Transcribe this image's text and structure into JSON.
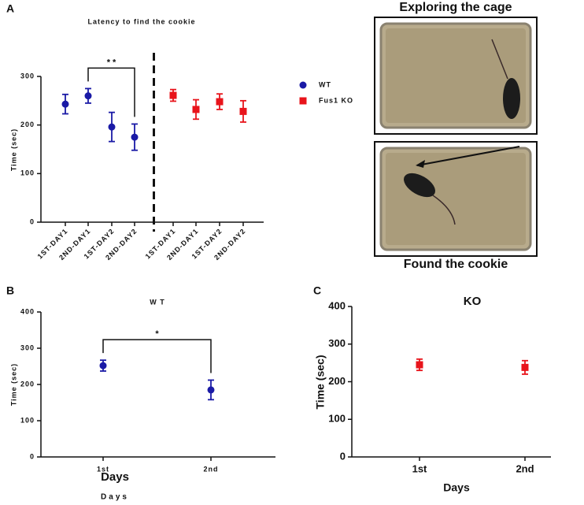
{
  "panel_labels": [
    "A",
    "B",
    "C"
  ],
  "photo_captions": [
    "Exploring the cage",
    "Found the cookie"
  ],
  "chart_data": [
    {
      "type": "scatter",
      "title": "Latency to find the cookie",
      "ylabel": "Time (sec)",
      "categories": [
        "1ST-DAY1",
        "2ND-DAY1",
        "1ST-DAY2",
        "2ND-DAY2",
        "1ST-DAY1",
        "2ND-DAY1",
        "1ST-DAY2",
        "2ND-DAY2"
      ],
      "series": [
        {
          "name": "WT",
          "color": "#1a1aa6",
          "marker": "circle",
          "values": [
            243,
            260,
            196,
            175,
            null,
            null,
            null,
            null
          ],
          "errors": [
            20,
            15,
            30,
            27,
            null,
            null,
            null,
            null
          ]
        },
        {
          "name": "Fus1 KO",
          "color": "#e8141b",
          "marker": "square",
          "values": [
            null,
            null,
            null,
            null,
            261,
            232,
            248,
            228
          ],
          "errors": [
            null,
            null,
            null,
            null,
            12,
            20,
            16,
            22
          ]
        }
      ],
      "ylim": [
        0,
        300
      ],
      "yticks": [
        0,
        100,
        200,
        300
      ],
      "legend": "right",
      "divider": true,
      "annotations": [
        {
          "text": "* *",
          "from": 1,
          "to": 3
        }
      ]
    },
    {
      "type": "scatter",
      "title": "W T",
      "ylabel": "Time (sec)",
      "xlabel": "Days",
      "xlabel_secondary": "Days",
      "categories": [
        "1st",
        "2nd"
      ],
      "series": [
        {
          "name": "WT",
          "color": "#1a1aa6",
          "marker": "circle",
          "values": [
            252,
            185
          ],
          "errors": [
            15,
            27
          ]
        }
      ],
      "ylim": [
        0,
        400
      ],
      "yticks": [
        0,
        100,
        200,
        300,
        400
      ],
      "annotations": [
        {
          "text": "*",
          "from": 0,
          "to": 1
        }
      ]
    },
    {
      "type": "scatter",
      "title": "KO",
      "ylabel": "Time (sec)",
      "xlabel": "Days",
      "categories": [
        "1st",
        "2nd"
      ],
      "series": [
        {
          "name": "KO",
          "color": "#e8141b",
          "marker": "square",
          "values": [
            245,
            238
          ],
          "errors": [
            15,
            18
          ]
        }
      ],
      "ylim": [
        0,
        400
      ],
      "yticks": [
        0,
        100,
        200,
        300,
        400
      ]
    }
  ]
}
